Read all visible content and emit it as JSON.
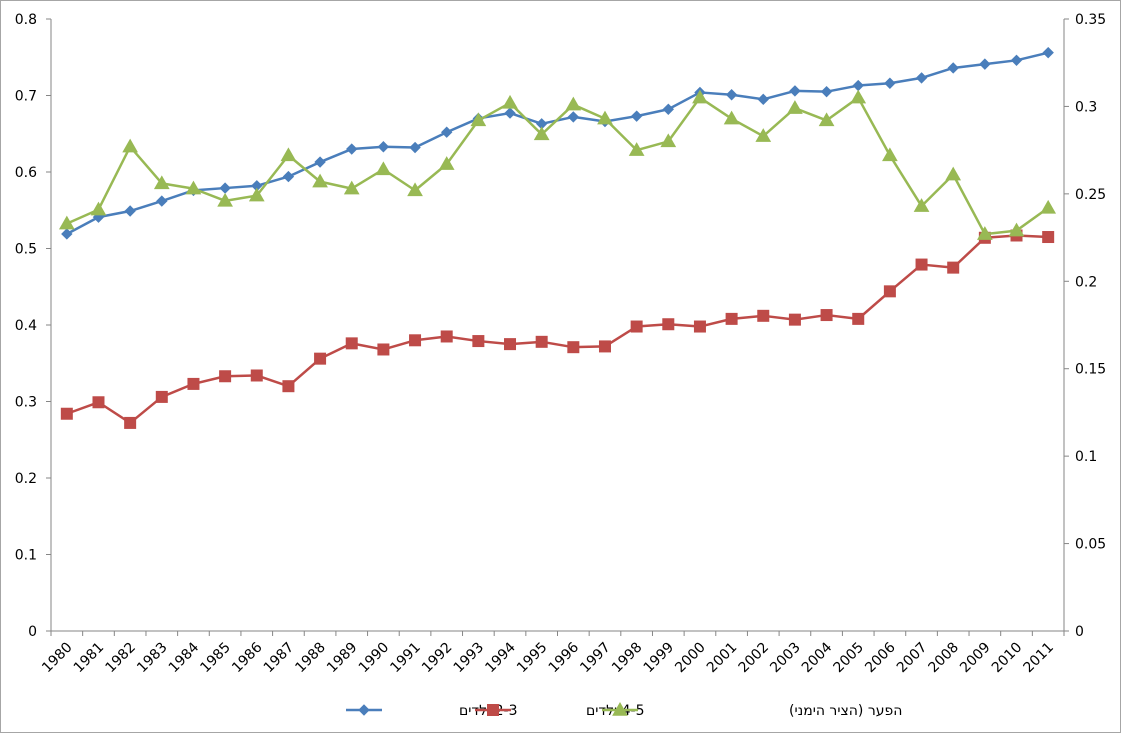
{
  "chart_data": {
    "type": "line",
    "x": [
      "1980",
      "1981",
      "1982",
      "1983",
      "1984",
      "1985",
      "1986",
      "1987",
      "1988",
      "1989",
      "1990",
      "1991",
      "1992",
      "1993",
      "1994",
      "1995",
      "1996",
      "1997",
      "1998",
      "1999",
      "2000",
      "2001",
      "2002",
      "2003",
      "2004",
      "2005",
      "2006",
      "2007",
      "2008",
      "2009",
      "2010",
      "2011"
    ],
    "y_left": {
      "min": 0,
      "max": 0.8,
      "ticks": [
        "0",
        "0.1",
        "0.2",
        "0.3",
        "0.4",
        "0.5",
        "0.6",
        "0.7",
        "0.8"
      ]
    },
    "y_right": {
      "min": 0,
      "max": 0.35,
      "ticks": [
        "0",
        "0.05",
        "0.1",
        "0.15",
        "0.2",
        "0.25",
        "0.3",
        "0.35"
      ]
    },
    "grid": false,
    "legend_position": "bottom",
    "series": [
      {
        "name": "2-3 ילדים",
        "axis": "left",
        "marker": "diamond",
        "color": "#4a7ebb",
        "values": [
          0.519,
          0.541,
          0.549,
          0.562,
          0.576,
          0.579,
          0.582,
          0.594,
          0.613,
          0.63,
          0.633,
          0.632,
          0.652,
          0.67,
          0.677,
          0.663,
          0.672,
          0.666,
          0.673,
          0.682,
          0.704,
          0.701,
          0.695,
          0.706,
          0.705,
          0.713,
          0.716,
          0.723,
          0.736,
          0.741,
          0.746,
          0.756
        ]
      },
      {
        "name": "4-5 ילדים",
        "axis": "left",
        "marker": "square",
        "color": "#be4b48",
        "values": [
          0.284,
          0.299,
          0.272,
          0.306,
          0.323,
          0.333,
          0.334,
          0.32,
          0.356,
          0.376,
          0.368,
          0.38,
          0.385,
          0.379,
          0.375,
          0.378,
          0.371,
          0.372,
          0.398,
          0.401,
          0.398,
          0.408,
          0.412,
          0.407,
          0.413,
          0.408,
          0.444,
          0.479,
          0.475,
          0.514,
          0.517,
          0.515
        ]
      },
      {
        "name": "הפער (הציר הימני)",
        "axis": "right",
        "marker": "triangle",
        "color": "#98b954",
        "values": [
          0.233,
          0.241,
          0.277,
          0.256,
          0.253,
          0.246,
          0.249,
          0.272,
          0.257,
          0.253,
          0.264,
          0.252,
          0.267,
          0.292,
          0.302,
          0.284,
          0.301,
          0.293,
          0.275,
          0.28,
          0.305,
          0.293,
          0.283,
          0.299,
          0.292,
          0.305,
          0.272,
          0.243,
          0.261,
          0.227,
          0.229,
          0.242
        ]
      }
    ]
  }
}
